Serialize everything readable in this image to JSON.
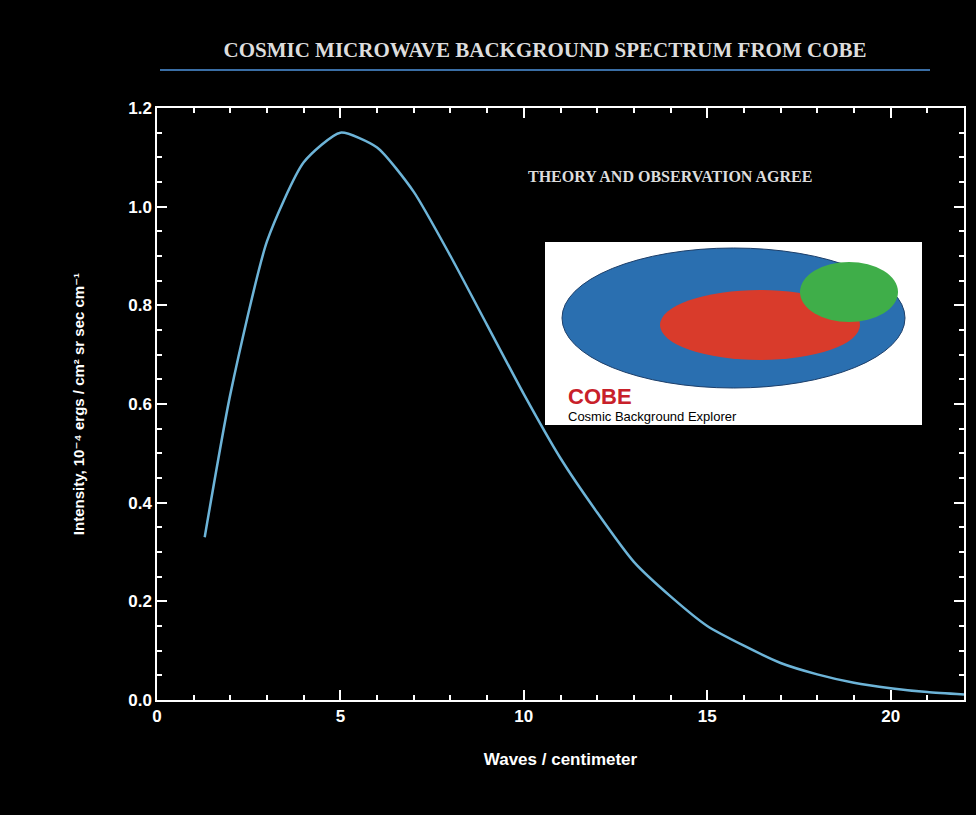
{
  "chart_data": {
    "type": "line",
    "title": "COSMIC MICROWAVE BACKGROUND SPECTRUM FROM COBE",
    "x_label": "Waves / centimeter",
    "y_label": "Intensity, 10⁻⁴ ergs / cm² sr sec cm⁻¹",
    "annotations": [
      "THEORY AND OBSERVATION AGREE",
      "COBE",
      "Cosmic Background Explorer"
    ],
    "x": [
      1.3,
      2,
      3,
      4,
      5,
      6,
      7,
      8,
      9,
      10,
      11,
      12,
      13,
      14,
      15,
      16,
      17,
      18,
      19,
      20,
      21,
      22
    ],
    "values": [
      0.33,
      0.62,
      0.93,
      1.09,
      1.15,
      1.12,
      1.03,
      0.9,
      0.76,
      0.62,
      0.49,
      0.38,
      0.28,
      0.21,
      0.15,
      0.11,
      0.075,
      0.052,
      0.035,
      0.024,
      0.016,
      0.011
    ],
    "color": "#6db4d8",
    "xlim": [
      0,
      22
    ],
    "xticks": [
      0,
      5,
      10,
      15,
      20
    ],
    "ylim": [
      0,
      1.2
    ],
    "yticks": [
      {
        "value": 0,
        "label": "0.0"
      },
      0.2,
      0.4,
      0.6,
      0.8,
      {
        "value": 1,
        "label": "1.0"
      },
      1.2
    ],
    "grid": false
  }
}
